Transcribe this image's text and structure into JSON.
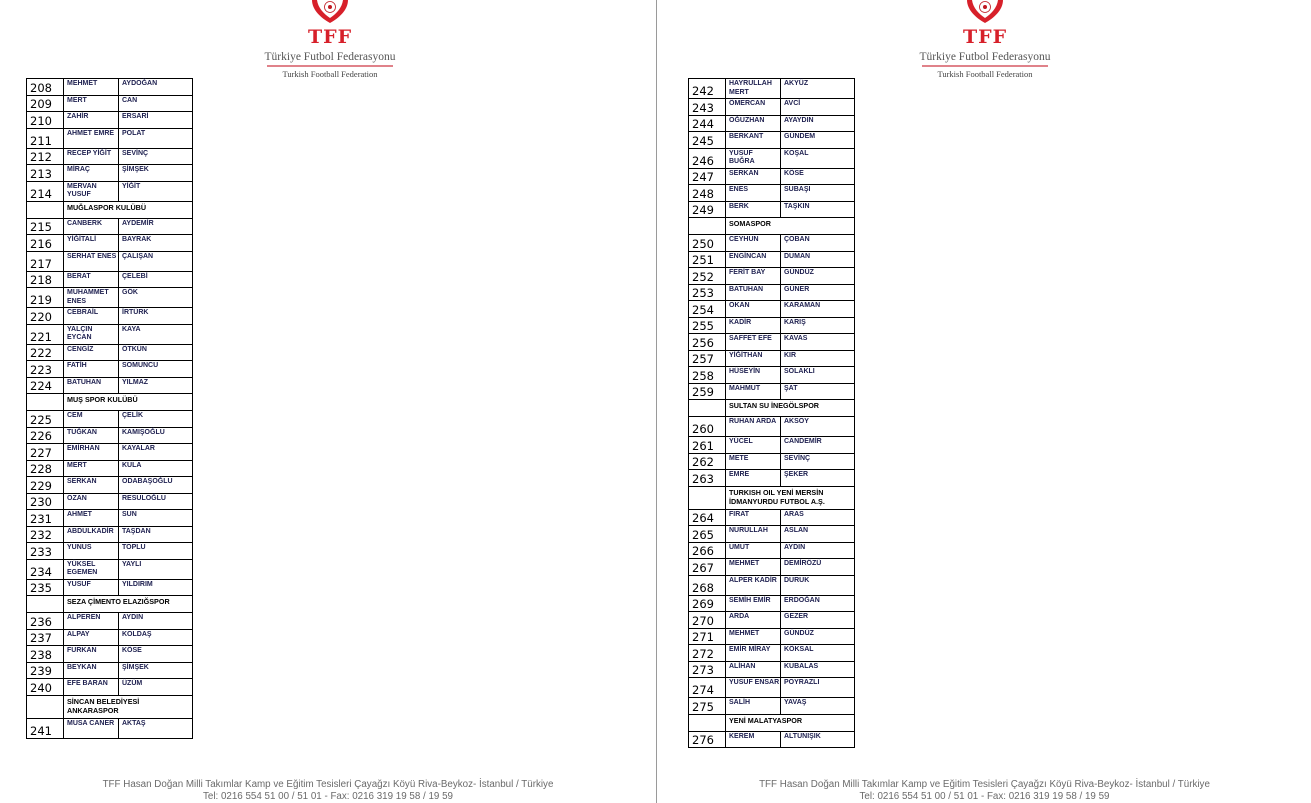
{
  "logo": {
    "abbr": "TFF",
    "name_tr": "Türkiye Futbol Federasyonu",
    "name_en": "Turkish Football Federation",
    "color": "#d7202a"
  },
  "footer": {
    "line1": "TFF Hasan Doğan Milli Takımlar Kamp ve Eğitim Tesisleri Çayağzı Köyü Riva-Beykoz- İstanbul / Türkiye",
    "line2": "Tel: 0216 554 51 00 / 51 01 - Fax: 0216 319 19 58 / 19 59"
  },
  "pages": [
    {
      "rows": [
        {
          "no": "208",
          "first": "MEHMET",
          "last": "AYDOĞAN"
        },
        {
          "no": "209",
          "first": "MERT",
          "last": "CAN"
        },
        {
          "no": "210",
          "first": "ZAHİR",
          "last": "ERSARİ"
        },
        {
          "no": "211",
          "first": "AHMET EMRE",
          "last": "POLAT",
          "tall": true
        },
        {
          "no": "212",
          "first": "RECEP YİĞİT",
          "last": "SEVİNÇ"
        },
        {
          "no": "213",
          "first": "MİRAÇ",
          "last": "ŞİMŞEK"
        },
        {
          "no": "214",
          "first": "MERVAN YUSUF",
          "last": "YİĞİT",
          "tall": true
        },
        {
          "club": "MUĞLASPOR KULÜBÜ"
        },
        {
          "no": "215",
          "first": "CANBERK",
          "last": "AYDEMİR"
        },
        {
          "no": "216",
          "first": "YİĞİTALİ",
          "last": "BAYRAK"
        },
        {
          "no": "217",
          "first": "SERHAT ENES",
          "last": "ÇALIŞAN",
          "tall": true
        },
        {
          "no": "218",
          "first": "BERAT",
          "last": "ÇELEBİ"
        },
        {
          "no": "219",
          "first": "MUHAMMET ENES",
          "last": "GÖK",
          "tall": true
        },
        {
          "no": "220",
          "first": "CEBRAİL",
          "last": "İRTÜRK"
        },
        {
          "no": "221",
          "first": "YALÇIN EYCAN",
          "last": "KAYA",
          "tall": true
        },
        {
          "no": "222",
          "first": "CENGİZ",
          "last": "ÖTKÜN"
        },
        {
          "no": "223",
          "first": "FATİH",
          "last": "SOMUNCU"
        },
        {
          "no": "224",
          "first": "BATUHAN",
          "last": "YILMAZ"
        },
        {
          "club": "MUŞ SPOR KULÜBÜ"
        },
        {
          "no": "225",
          "first": "CEM",
          "last": "ÇELİK"
        },
        {
          "no": "226",
          "first": "TUĞKAN",
          "last": "KAMIŞOĞLU"
        },
        {
          "no": "227",
          "first": "EMİRHAN",
          "last": "KAYALAR"
        },
        {
          "no": "228",
          "first": "MERT",
          "last": "KULA"
        },
        {
          "no": "229",
          "first": "SERKAN",
          "last": "ODABAŞOĞLU"
        },
        {
          "no": "230",
          "first": "OZAN",
          "last": "RESULOĞLU"
        },
        {
          "no": "231",
          "first": "AHMET",
          "last": "SUN"
        },
        {
          "no": "232",
          "first": "ABDULKADİR",
          "last": "TAŞDAN"
        },
        {
          "no": "233",
          "first": "YUNUS",
          "last": "TOPLU"
        },
        {
          "no": "234",
          "first": "YÜKSEL EGEMEN",
          "last": "YAYLI",
          "tall": true
        },
        {
          "no": "235",
          "first": "YUSUF",
          "last": "YILDIRIM"
        },
        {
          "club": "SEZA ÇİMENTO ELAZIĞSPOR"
        },
        {
          "no": "236",
          "first": "ALPEREN",
          "last": "AYDIN"
        },
        {
          "no": "237",
          "first": "ALPAY",
          "last": "KOLDAŞ"
        },
        {
          "no": "238",
          "first": "FURKAN",
          "last": "KÖSE"
        },
        {
          "no": "239",
          "first": "BEYKAN",
          "last": "ŞİMŞEK"
        },
        {
          "no": "240",
          "first": "EFE BARAN",
          "last": "ÜZÜM"
        },
        {
          "club": "SİNCAN BELEDİYESİ ANKARASPOR",
          "tall": true
        },
        {
          "no": "241",
          "first": "MUSA CANER",
          "last": "AKTAŞ",
          "tall": true
        }
      ]
    },
    {
      "rows": [
        {
          "no": "242",
          "first": "HAYRULLAH MERT",
          "last": "AKYÜZ",
          "tall": true
        },
        {
          "no": "243",
          "first": "ÖMERCAN",
          "last": "AVCİ"
        },
        {
          "no": "244",
          "first": "OĞUZHAN",
          "last": "AYAYDIN"
        },
        {
          "no": "245",
          "first": "BERKANT",
          "last": "GÜNDEM"
        },
        {
          "no": "246",
          "first": "YUSUF BUĞRA",
          "last": "KOŞAL",
          "tall": true
        },
        {
          "no": "247",
          "first": "SERKAN",
          "last": "KÖSE"
        },
        {
          "no": "248",
          "first": "ENES",
          "last": "SUBAŞI"
        },
        {
          "no": "249",
          "first": "BERK",
          "last": "TAŞKIN"
        },
        {
          "club": "SOMASPOR"
        },
        {
          "no": "250",
          "first": "CEYHUN",
          "last": "ÇOBAN"
        },
        {
          "no": "251",
          "first": "ENGİNCAN",
          "last": "DUMAN"
        },
        {
          "no": "252",
          "first": "FERİT BAY",
          "last": "GÜNDÜZ"
        },
        {
          "no": "253",
          "first": "BATUHAN",
          "last": "GÜNER"
        },
        {
          "no": "254",
          "first": "OKAN",
          "last": "KARAMAN"
        },
        {
          "no": "255",
          "first": "KADİR",
          "last": "KARIŞ"
        },
        {
          "no": "256",
          "first": "SAFFET EFE",
          "last": "KAVAS"
        },
        {
          "no": "257",
          "first": "YİĞİTHAN",
          "last": "KIR"
        },
        {
          "no": "258",
          "first": "HÜSEYİN",
          "last": "SOLAKLI"
        },
        {
          "no": "259",
          "first": "MAHMUT",
          "last": "ŞAT"
        },
        {
          "club": "SULTAN SU İNEGÖLSPOR"
        },
        {
          "no": "260",
          "first": "RUHAN ARDA",
          "last": "AKSOY",
          "tall": true
        },
        {
          "no": "261",
          "first": "YÜCEL",
          "last": "CANDEMİR"
        },
        {
          "no": "262",
          "first": "METE",
          "last": "SEVİNÇ"
        },
        {
          "no": "263",
          "first": "EMRE",
          "last": "ŞEKER"
        },
        {
          "club": "TURKISH OIL YENİ MERSİN İDMANYURDU FUTBOL A.Ş.",
          "tall": true
        },
        {
          "no": "264",
          "first": "FIRAT",
          "last": "ARAS"
        },
        {
          "no": "265",
          "first": "NURULLAH",
          "last": "ASLAN"
        },
        {
          "no": "266",
          "first": "UMUT",
          "last": "AYDIN"
        },
        {
          "no": "267",
          "first": "MEHMET",
          "last": "DEMİRÖZÜ"
        },
        {
          "no": "268",
          "first": "ALPER KADİR",
          "last": "DURUK",
          "tall": true
        },
        {
          "no": "269",
          "first": "SEMİH EMİR",
          "last": "ERDOĞAN"
        },
        {
          "no": "270",
          "first": "ARDA",
          "last": "GEZER"
        },
        {
          "no": "271",
          "first": "MEHMET",
          "last": "GÜNDÜZ"
        },
        {
          "no": "272",
          "first": "EMİR MİRAY",
          "last": "KÖKSAL"
        },
        {
          "no": "273",
          "first": "ALİHAN",
          "last": "KUBALAS"
        },
        {
          "no": "274",
          "first": "YUSUF ENSAR",
          "last": "POYRAZLI",
          "tall": true
        },
        {
          "no": "275",
          "first": "SALİH",
          "last": "YAVAŞ"
        },
        {
          "club": "YENİ MALATYASPOR"
        },
        {
          "no": "276",
          "first": "KEREM",
          "last": "ALTUNIŞIK"
        }
      ]
    }
  ]
}
